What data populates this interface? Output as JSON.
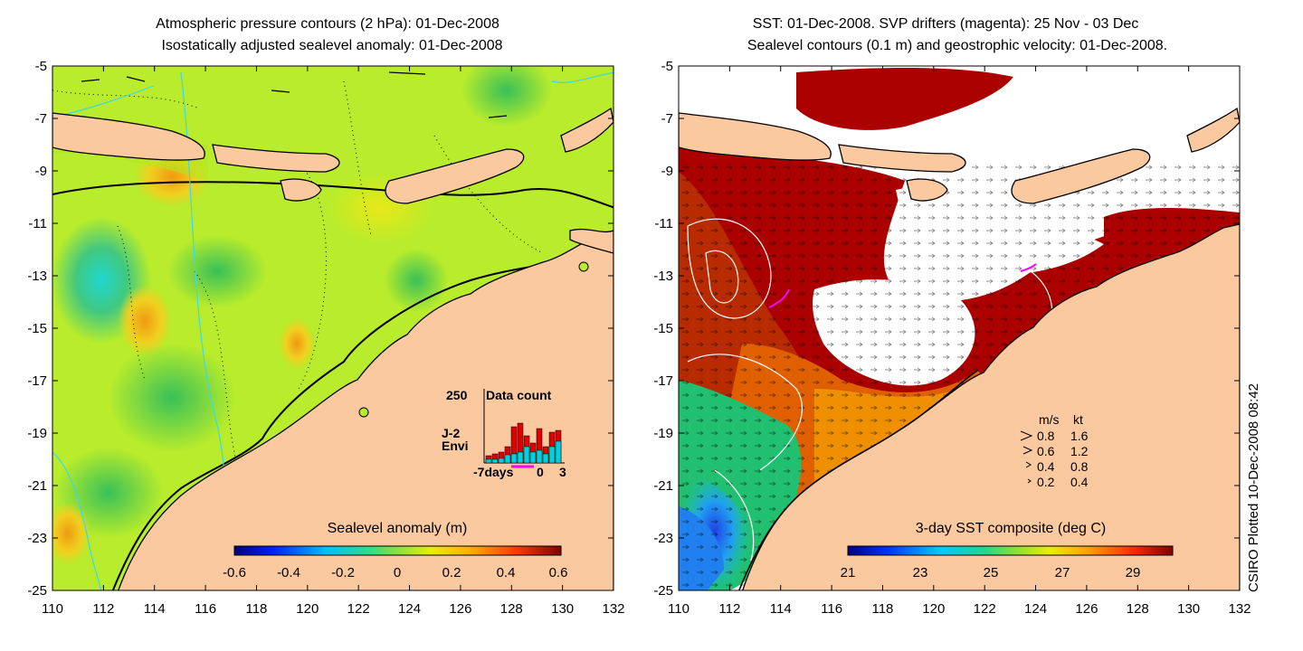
{
  "left_map": {
    "title_line1": "Atmospheric pressure contours (2 hPa): 01-Dec-2008",
    "title_line2": "Isostatically adjusted sealevel anomaly: 01-Dec-2008",
    "colorbar_label": "Sealevel anomaly (m)",
    "colorbar_ticks": [
      "-0.6",
      "-0.4",
      "-0.2",
      "0",
      "0.2",
      "0.4",
      "0.6"
    ],
    "inset": {
      "y_label": "250",
      "title": "Data count",
      "series": [
        {
          "label": "J-2",
          "color": "#e00000"
        },
        {
          "label": "Envi",
          "color": "#00d0e0"
        }
      ],
      "x_ticks": [
        "-7days",
        "0",
        "3"
      ]
    }
  },
  "right_map": {
    "title_line1": "SST: 01-Dec-2008. SVP drifters (magenta): 25 Nov - 03 Dec",
    "title_line2": "Sealevel contours (0.1 m) and geostrophic velocity: 01-Dec-2008.",
    "colorbar_label": "3-day SST composite (deg C)",
    "colorbar_ticks": [
      "21",
      "23",
      "25",
      "27",
      "29"
    ],
    "legend": {
      "header_ms": "m/s",
      "header_kt": "kt",
      "rows": [
        {
          "ms": "0.8",
          "kt": "1.6"
        },
        {
          "ms": "0.6",
          "kt": "1.2"
        },
        {
          "ms": "0.4",
          "kt": "0.8"
        },
        {
          "ms": "0.2",
          "kt": "0.4"
        }
      ]
    }
  },
  "axes": {
    "lat_ticks": [
      "-5",
      "-7",
      "-9",
      "-11",
      "-13",
      "-15",
      "-17",
      "-19",
      "-21",
      "-23",
      "-25"
    ],
    "lon_ticks": [
      "110",
      "112",
      "114",
      "116",
      "118",
      "120",
      "122",
      "124",
      "126",
      "128",
      "130",
      "132"
    ]
  },
  "footer": "CSIRO Plotted 10-Dec-2008 08:42",
  "colors": {
    "land": "#fac9a0",
    "coast": "#000000",
    "contour": "#40d8e8",
    "sst_warm": "#aa0000",
    "sla_base": "#b8ec2c",
    "drifter": "#ff00ff"
  }
}
